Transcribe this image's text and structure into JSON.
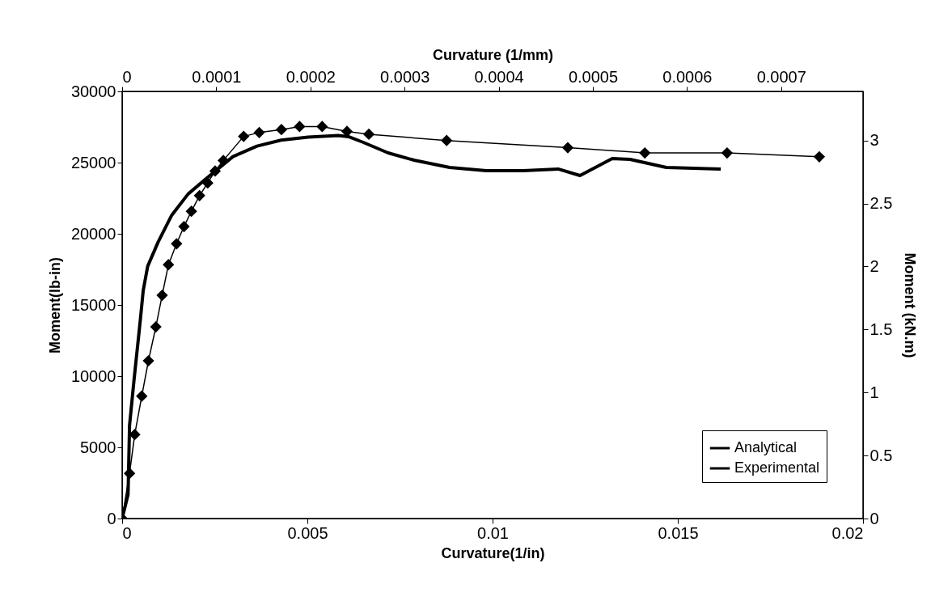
{
  "chart_data": {
    "type": "line",
    "xlabel": "Curvature(1/in)",
    "ylabel": "Moment(lb-in)",
    "x2label": "Curvature (1/mm)",
    "y2label": "Moment (kN.m)",
    "xlim": [
      0,
      0.02
    ],
    "xticks": [
      0,
      0.005,
      0.01,
      0.015,
      0.02
    ],
    "ylim": [
      0,
      30000
    ],
    "yticks": [
      0,
      5000,
      10000,
      15000,
      20000,
      25000,
      30000
    ],
    "x2lim": [
      0,
      0.000787
    ],
    "x2ticks": [
      0,
      0.0001,
      0.0002,
      0.0003,
      0.0004,
      0.0005,
      0.0006,
      0.0007
    ],
    "y2lim": [
      0,
      3.39
    ],
    "y2ticks": [
      0,
      0.5,
      1,
      1.5,
      2,
      2.5,
      3
    ],
    "legend": "bottom right",
    "grid": false,
    "series": [
      {
        "name": "Analytical",
        "color": "#000000",
        "marker": "diamond",
        "x": [
          0,
          0.0002,
          0.00034,
          0.00053,
          0.00071,
          0.00091,
          0.00108,
          0.00125,
          0.00147,
          0.00167,
          0.00187,
          0.00209,
          0.00231,
          0.00251,
          0.00273,
          0.00328,
          0.0037,
          0.0043,
          0.00479,
          0.0054,
          0.00607,
          0.00666,
          0.00876,
          0.01203,
          0.01411,
          0.01633,
          0.01882
        ],
        "values": [
          0,
          3170,
          5900,
          8600,
          11080,
          13460,
          15680,
          17830,
          19300,
          20510,
          21580,
          22680,
          23570,
          24410,
          25150,
          26840,
          27110,
          27320,
          27530,
          27530,
          27190,
          26990,
          26550,
          26050,
          25680,
          25680,
          25410
        ]
      },
      {
        "name": "Experimental",
        "color": "#000000",
        "marker": "none",
        "x": [
          0,
          0.00016,
          0.0002,
          0.00032,
          0.00049,
          0.00057,
          0.00069,
          0.00097,
          0.00134,
          0.00178,
          0.00235,
          0.00299,
          0.00364,
          0.00429,
          0.00502,
          0.00583,
          0.00611,
          0.00651,
          0.00718,
          0.00788,
          0.00884,
          0.00983,
          0.01082,
          0.01177,
          0.01236,
          0.01323,
          0.01371,
          0.01469,
          0.01616
        ],
        "values": [
          0,
          1690,
          6540,
          9700,
          13920,
          16030,
          17720,
          19410,
          21310,
          22790,
          24050,
          25420,
          26160,
          26580,
          26790,
          26900,
          26820,
          26420,
          25680,
          25170,
          24660,
          24430,
          24430,
          24550,
          24090,
          25280,
          25230,
          24660,
          24550
        ]
      }
    ]
  }
}
